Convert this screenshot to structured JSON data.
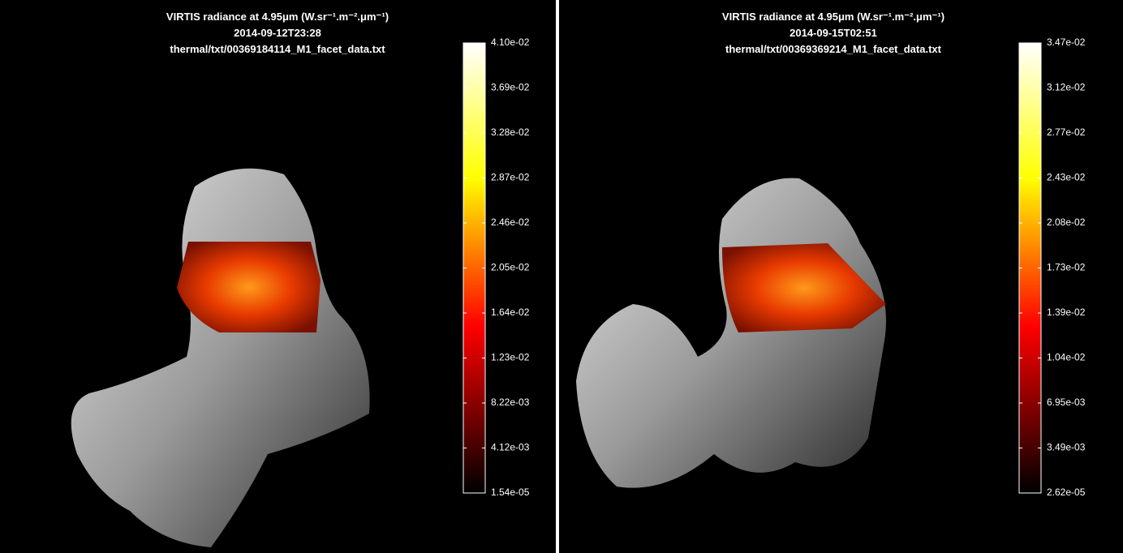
{
  "panels": [
    {
      "title": "VIRTIS radiance at 4.95μm (W.sr⁻¹.m⁻².μm⁻¹)",
      "date": "2014-09-12T23:28",
      "file": "thermal/txt/00369184114_M1_facet_data.txt",
      "colorbar_labels": [
        "4.10e-02",
        "3.69e-02",
        "3.28e-02",
        "2.87e-02",
        "2.46e-02",
        "2.05e-02",
        "1.64e-02",
        "1.23e-02",
        "8.22e-03",
        "4.12e-03",
        "1.54e-05"
      ]
    },
    {
      "title": "VIRTIS radiance at 4.95μm (W.sr⁻¹.m⁻².μm⁻¹)",
      "date": "2014-09-15T02:51",
      "file": "thermal/txt/00369369214_M1_facet_data.txt",
      "colorbar_labels": [
        "3.47e-02",
        "3.12e-02",
        "2.77e-02",
        "2.43e-02",
        "2.08e-02",
        "1.73e-02",
        "1.39e-02",
        "1.04e-02",
        "6.95e-03",
        "3.49e-03",
        "2.62e-05"
      ]
    }
  ]
}
